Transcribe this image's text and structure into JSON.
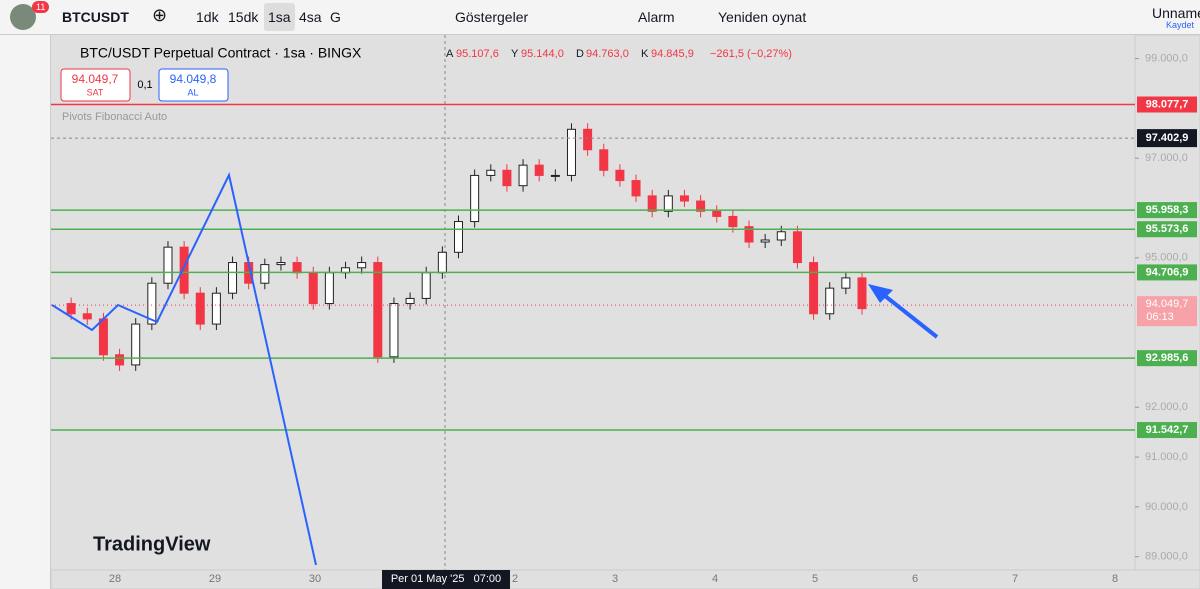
{
  "toolbar": {
    "badge": "11",
    "symbol": "BTCUSDT",
    "intervals": [
      "1dk",
      "15dk",
      "1sa",
      "4sa",
      "G"
    ],
    "indicators": "Göstergeler",
    "alert": "Alarm",
    "replay": "Yeniden oynat",
    "layout_name": "Unname",
    "save": "Kaydet"
  },
  "legend": {
    "title": "BTC/USDT Perpetual Contract · 1sa · BINGX",
    "ohlc": [
      {
        "key": "A",
        "value": "95.107,6"
      },
      {
        "key": "Y",
        "value": "95.144,0"
      },
      {
        "key": "D",
        "value": "94.763,0"
      },
      {
        "key": "K",
        "value": "94.845,9"
      }
    ],
    "change": "−261,5 (−0,27%)"
  },
  "trade": {
    "sell_price": "94.049,7",
    "sell": "SAT",
    "spread": "0,1",
    "buy_price": "94.049,8",
    "buy": "AL"
  },
  "indicator": "Pivots Fibonacci Auto",
  "logo": "TradingView",
  "chart": {
    "type": "candlestick",
    "closes": [
      94082,
      93877,
      93774,
      93054,
      92850,
      93670,
      94490,
      95214,
      94290,
      93670,
      94290,
      94905,
      94490,
      94864,
      94905,
      94700,
      94082,
      94700,
      94800,
      94905,
      93012,
      94082,
      94185,
      94700,
      95111,
      95728,
      96654,
      96757,
      96448,
      96860,
      96654,
      96654,
      97580,
      97169,
      96757,
      96551,
      96243,
      95934,
      96243,
      96140,
      95934,
      95831,
      95626,
      95317,
      95358,
      95523,
      94905,
      93877,
      94391,
      94597,
      93980
    ],
    "ylim": [
      88733,
      99473
    ],
    "yticks": [
      {
        "value": 99000,
        "label": "99.000,0"
      },
      {
        "value": 97000,
        "label": "97.000,0"
      },
      {
        "value": 95000,
        "label": "95.000,0"
      },
      {
        "value": 92000,
        "label": "92.000,0"
      },
      {
        "value": 91000,
        "label": "91.000,0"
      },
      {
        "value": 90000,
        "label": "90.000,0"
      },
      {
        "value": 89000,
        "label": "89.000,0"
      }
    ],
    "levels": [
      {
        "value": 98077.7,
        "label": "98.077,7",
        "color": "#f23645"
      },
      {
        "value": 95958.3,
        "label": "95.958,3",
        "color": "#4caf50"
      },
      {
        "value": 95573.6,
        "label": "95.573,6",
        "color": "#4caf50"
      },
      {
        "value": 94706.9,
        "label": "94.706,9",
        "color": "#4caf50"
      },
      {
        "value": 92985.6,
        "label": "92.985,6",
        "color": "#4caf50"
      },
      {
        "value": 91542.7,
        "label": "91.542,7",
        "color": "#4caf50"
      }
    ],
    "crosshair": {
      "value": 97402.9,
      "label": "97.402,9",
      "time": "Per 01 May '25   07:00"
    },
    "last_price": {
      "value": 94049.7,
      "label": "94.049,7",
      "countdown": "06:13"
    },
    "x_labels": [
      "28",
      "29",
      "30",
      "2",
      "3",
      "4",
      "5",
      "6",
      "7",
      "8"
    ]
  }
}
